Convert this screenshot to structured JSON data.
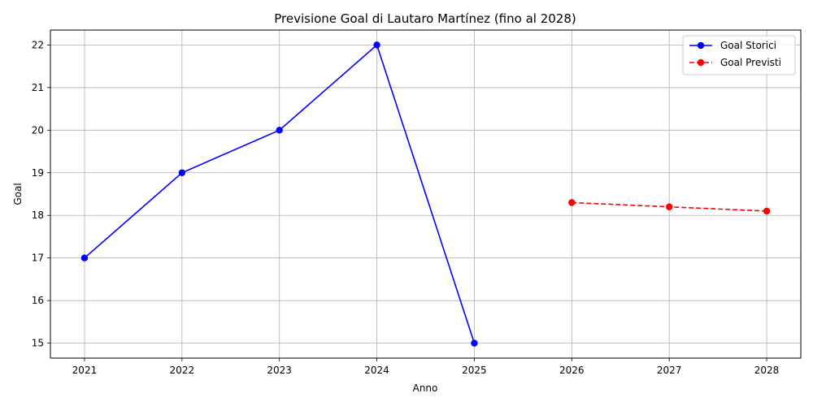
{
  "chart_data": {
    "type": "line",
    "title": "Previsione Goal di Lautaro Martínez (fino al 2028)",
    "xlabel": "Anno",
    "ylabel": "Goal",
    "x_ticks": [
      "2021",
      "2022",
      "2023",
      "2024",
      "2025",
      "2026",
      "2027",
      "2028"
    ],
    "y_ticks": [
      "15",
      "16",
      "17",
      "18",
      "19",
      "20",
      "21",
      "22"
    ],
    "xlim": [
      2020.65,
      2028.35
    ],
    "ylim": [
      14.65,
      22.35
    ],
    "grid": true,
    "legend_position": "top-right",
    "series": [
      {
        "name": "Goal Storici",
        "color": "#0000ff",
        "line_style": "solid",
        "marker": "circle",
        "x": [
          2021,
          2022,
          2023,
          2024,
          2025
        ],
        "y": [
          17,
          19,
          20,
          22,
          15
        ]
      },
      {
        "name": "Goal Previsti",
        "color": "#ff0000",
        "line_style": "dashed",
        "marker": "circle",
        "x": [
          2026,
          2027,
          2028
        ],
        "y": [
          18.3,
          18.2,
          18.1
        ]
      }
    ]
  }
}
